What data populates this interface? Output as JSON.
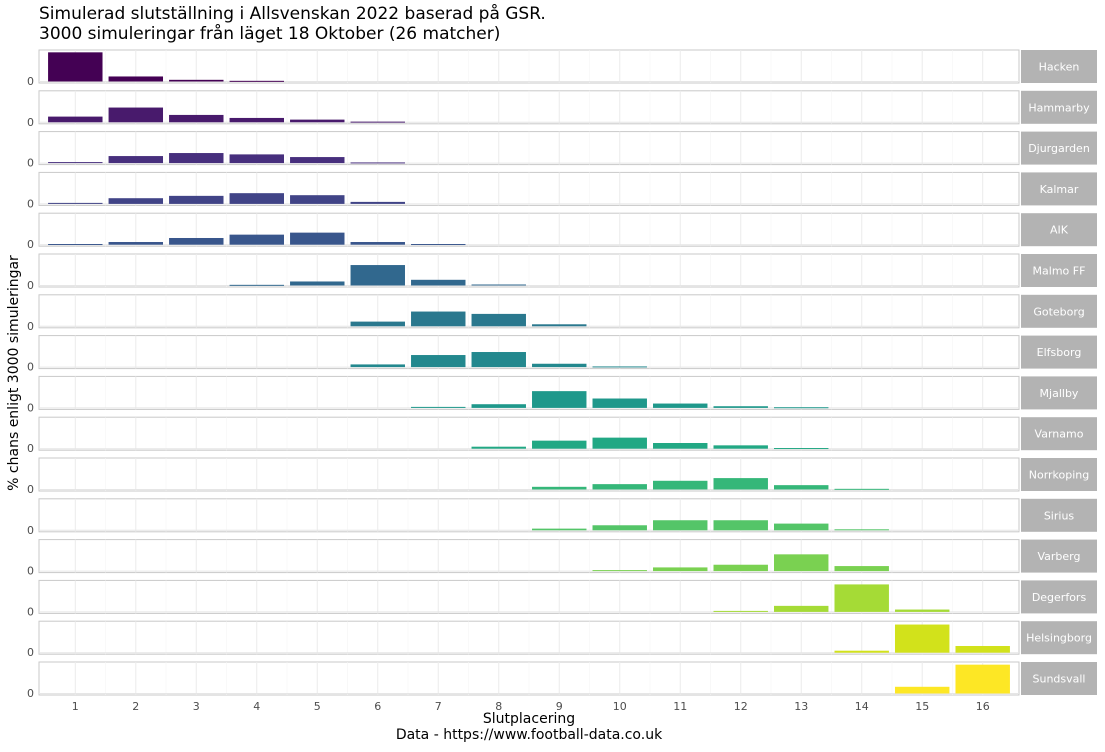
{
  "chart_data": {
    "type": "bar",
    "title": "Simulerad slutställning i Allsvenskan 2022 baserad på GSR.",
    "subtitle": "3000 simuleringar från läget 18 Oktober (26 matcher)",
    "xlabel": "Slutplacering",
    "ylabel": "% chans enligt 3000 simuleringar",
    "caption": "Data - https://www.football-data.co.uk",
    "x": [
      1,
      2,
      3,
      4,
      5,
      6,
      7,
      8,
      9,
      10,
      11,
      12,
      13,
      14,
      15,
      16
    ],
    "y_tick_label": "0",
    "ylim": [
      0,
      88
    ],
    "facets": [
      {
        "team": "Hacken",
        "color": "#440154",
        "values": [
          87,
          15,
          5,
          2,
          0,
          0,
          0,
          0,
          0,
          0,
          0,
          0,
          0,
          0,
          0,
          0
        ]
      },
      {
        "team": "Hammarby",
        "color": "#481a6c",
        "values": [
          17,
          44,
          22,
          13,
          8,
          2,
          0,
          0,
          0,
          0,
          0,
          0,
          0,
          0,
          0,
          0
        ]
      },
      {
        "team": "Djurgarden",
        "color": "#472f7d",
        "values": [
          3,
          21,
          30,
          26,
          18,
          2,
          0,
          0,
          0,
          0,
          0,
          0,
          0,
          0,
          0,
          0
        ]
      },
      {
        "team": "Kalmar",
        "color": "#414487",
        "values": [
          3,
          17,
          24,
          32,
          26,
          6,
          0,
          0,
          0,
          0,
          0,
          0,
          0,
          0,
          0,
          0
        ]
      },
      {
        "team": "AIK",
        "color": "#39568c",
        "values": [
          2,
          8,
          20,
          30,
          36,
          8,
          2,
          0,
          0,
          0,
          0,
          0,
          0,
          0,
          0,
          0
        ]
      },
      {
        "team": "Malmo FF",
        "color": "#31688e",
        "values": [
          0,
          0,
          0,
          2,
          12,
          61,
          17,
          3,
          0,
          0,
          0,
          0,
          0,
          0,
          0,
          0
        ]
      },
      {
        "team": "Goteborg",
        "color": "#2a788e",
        "values": [
          0,
          0,
          0,
          0,
          0,
          14,
          44,
          37,
          6,
          0,
          0,
          0,
          0,
          0,
          0,
          0
        ]
      },
      {
        "team": "Elfsborg",
        "color": "#23888e",
        "values": [
          0,
          0,
          0,
          0,
          0,
          8,
          36,
          45,
          10,
          2,
          0,
          0,
          0,
          0,
          0,
          0
        ]
      },
      {
        "team": "Mjallby",
        "color": "#1f988b",
        "values": [
          0,
          0,
          0,
          0,
          0,
          0,
          3,
          11,
          50,
          28,
          13,
          5,
          2,
          0,
          0,
          0
        ]
      },
      {
        "team": "Varnamo",
        "color": "#22a884",
        "values": [
          0,
          0,
          0,
          0,
          0,
          0,
          0,
          6,
          24,
          33,
          17,
          10,
          2,
          0,
          0,
          0
        ]
      },
      {
        "team": "Norrkoping",
        "color": "#35b779",
        "values": [
          0,
          0,
          0,
          0,
          0,
          0,
          0,
          0,
          8,
          16,
          26,
          34,
          13,
          2,
          0,
          0
        ]
      },
      {
        "team": "Sirius",
        "color": "#54c568",
        "values": [
          0,
          0,
          0,
          0,
          0,
          0,
          0,
          0,
          5,
          15,
          30,
          30,
          20,
          3,
          0,
          0
        ]
      },
      {
        "team": "Varberg",
        "color": "#7ad151",
        "values": [
          0,
          0,
          0,
          0,
          0,
          0,
          0,
          0,
          0,
          3,
          11,
          19,
          50,
          15,
          0,
          0
        ]
      },
      {
        "team": "Degerfors",
        "color": "#a5db36",
        "values": [
          0,
          0,
          0,
          0,
          0,
          0,
          0,
          0,
          0,
          0,
          0,
          3,
          18,
          82,
          7,
          0
        ]
      },
      {
        "team": "Helsingborg",
        "color": "#d2e21b",
        "values": [
          0,
          0,
          0,
          0,
          0,
          0,
          0,
          0,
          0,
          0,
          0,
          0,
          0,
          6,
          84,
          20
        ]
      },
      {
        "team": "Sundsvall",
        "color": "#fde725",
        "values": [
          0,
          0,
          0,
          0,
          0,
          0,
          0,
          0,
          0,
          0,
          0,
          0,
          0,
          0,
          20,
          86
        ]
      }
    ]
  }
}
